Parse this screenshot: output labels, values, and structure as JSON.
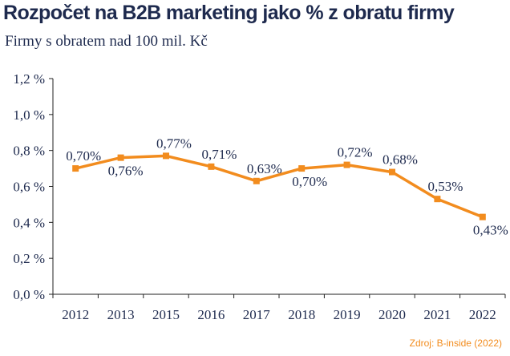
{
  "title": "Rozpočet na B2B marketing jako % z obratu firmy",
  "subtitle": "Firmy s obratem nad 100 mil. Kč",
  "source": "Zdroj: B-inside (2022)",
  "colors": {
    "line": "#f28c1e",
    "text": "#1e2a4e",
    "axis": "#222222"
  },
  "chart_data": {
    "type": "line",
    "categories": [
      "2012",
      "2013",
      "2015",
      "2016",
      "2017",
      "2018",
      "2019",
      "2020",
      "2021",
      "2022"
    ],
    "series": [
      {
        "values": [
          0.7,
          0.76,
          0.77,
          0.71,
          0.63,
          0.7,
          0.72,
          0.68,
          0.53,
          0.43
        ]
      }
    ],
    "data_labels": [
      "0,70%",
      "0,76%",
      "0,77%",
      "0,71%",
      "0,63%",
      "0,70%",
      "0,72%",
      "0,68%",
      "0,53%",
      "0,43%"
    ],
    "ylim": [
      0,
      1.2
    ],
    "yticks": [
      0,
      0.2,
      0.4,
      0.6,
      0.8,
      1.0,
      1.2
    ],
    "ytick_labels": [
      "0,0 %",
      "0,2 %",
      "0,4 %",
      "0,6 %",
      "0,8 %",
      "1,0 %",
      "1,2 %"
    ],
    "grid": false
  }
}
